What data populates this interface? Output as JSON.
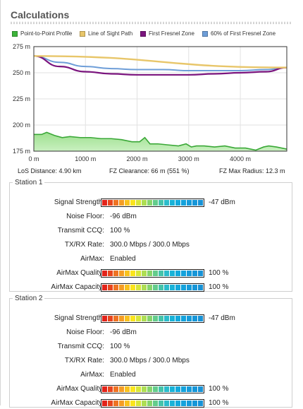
{
  "header": {
    "title": "Calculations"
  },
  "legend": [
    {
      "label": "Point-to-Point Profile",
      "color": "#3db43a"
    },
    {
      "label": "Line of Sight Path",
      "color": "#e8c66a"
    },
    {
      "label": "First Fresnel Zone",
      "color": "#7b157e"
    },
    {
      "label": "60% of First Fresnel Zone",
      "color": "#6e9ed8"
    }
  ],
  "chart_data": {
    "type": "area",
    "y_ticks": [
      "275 m",
      "250 m",
      "225 m",
      "200 m",
      "175 m"
    ],
    "x_ticks": [
      "0 m",
      "1000 m",
      "2000 m",
      "3000 m",
      "4000 m"
    ],
    "ylim": [
      175,
      275
    ],
    "xlim": [
      0,
      4900
    ],
    "grid": true,
    "series": [
      {
        "name": "Point-to-Point Profile",
        "x": [
          0,
          150,
          250,
          400,
          550,
          700,
          900,
          1100,
          1300,
          1500,
          1700,
          1900,
          2050,
          2150,
          2250,
          2400,
          2600,
          2800,
          2950,
          3050,
          3150,
          3300,
          3500,
          3700,
          3900,
          4100,
          4300,
          4450,
          4550,
          4700,
          4900
        ],
        "y": [
          191,
          191,
          193,
          190,
          188,
          189,
          188,
          188,
          187,
          187,
          186,
          184,
          184,
          188,
          182,
          182,
          181,
          180,
          182,
          179,
          180,
          180,
          179,
          180,
          178,
          178,
          176,
          179,
          180,
          179,
          177
        ]
      },
      {
        "name": "Line of Sight Path",
        "x": [
          0,
          4900
        ],
        "y": [
          266,
          255
        ]
      },
      {
        "name": "First Fresnel Zone",
        "x": [
          0,
          500,
          1000,
          1500,
          2000,
          2500,
          3000,
          3500,
          4000,
          4500,
          4900
        ],
        "y": [
          266,
          256,
          251,
          249,
          248,
          248,
          248,
          249,
          250,
          251,
          255
        ]
      },
      {
        "name": "60% of First Fresnel Zone",
        "x": [
          0,
          500,
          1000,
          1500,
          2000,
          2500,
          3000,
          3500,
          4000,
          4500,
          4900
        ],
        "y": [
          266,
          260,
          256,
          254,
          253,
          253,
          252,
          252,
          252,
          253,
          255
        ]
      }
    ]
  },
  "stats": {
    "los_distance": "LoS Distance: 4.90 km",
    "fz_clearance": "FZ Clearance: 66 m  (551 %)",
    "fz_max_radius": "FZ Max Radius: 12.3 m"
  },
  "stations": [
    {
      "title": "Station 1",
      "signal_label": "Signal Strength:",
      "signal_value": "-47 dBm",
      "signal_level": 1.0,
      "noise_label": "Noise Floor:",
      "noise_value": "-96 dBm",
      "ccq_label": "Transmit CCQ:",
      "ccq_value": "100 %",
      "rate_label": "TX/RX Rate:",
      "rate_value": "300.0 Mbps / 300.0 Mbps",
      "airmax_label": "AirMax:",
      "airmax_value": "Enabled",
      "quality_label": "AirMax Quality:",
      "quality_value": "100 %",
      "quality_level": 1.0,
      "capacity_label": "AirMax Capacity:",
      "capacity_value": "100 %",
      "capacity_level": 1.0
    },
    {
      "title": "Station 2",
      "signal_label": "Signal Strength:",
      "signal_value": "-47 dBm",
      "signal_level": 1.0,
      "noise_label": "Noise Floor:",
      "noise_value": "-96 dBm",
      "ccq_label": "Transmit CCQ:",
      "ccq_value": "100 %",
      "rate_label": "TX/RX Rate:",
      "rate_value": "300.0 Mbps / 300.0 Mbps",
      "airmax_label": "AirMax:",
      "airmax_value": "Enabled",
      "quality_label": "AirMax Quality:",
      "quality_value": "100 %",
      "quality_level": 1.0,
      "capacity_label": "AirMax Capacity:",
      "capacity_value": "100 %",
      "capacity_level": 1.0
    }
  ],
  "meter_colors": [
    "#e2231a",
    "#e8461e",
    "#ee7324",
    "#f59d24",
    "#f8c21e",
    "#fbe41c",
    "#d8e638",
    "#aede53",
    "#86d46c",
    "#63cc8c",
    "#45c3aa",
    "#2bbccb",
    "#19b3d8",
    "#13a9dc",
    "#14a2dc",
    "#169bda",
    "#1796d8",
    "#1892d6"
  ]
}
